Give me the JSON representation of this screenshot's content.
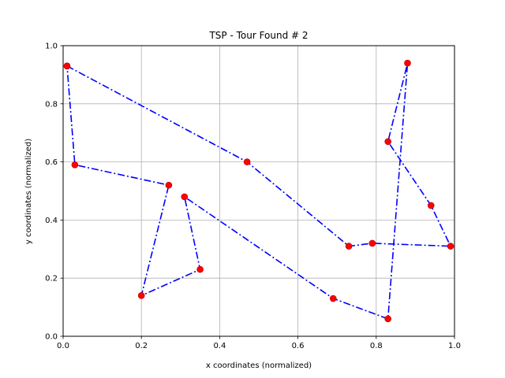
{
  "chart_data": {
    "type": "line",
    "title": "TSP - Tour Found # 2",
    "xlabel": "x coordinates (normalized)",
    "ylabel": "y coordinates (normalized)",
    "xlim": [
      0.0,
      1.0
    ],
    "ylim": [
      0.0,
      1.0
    ],
    "xticks": [
      "0.0",
      "0.2",
      "0.4",
      "0.6",
      "0.8",
      "1.0"
    ],
    "yticks": [
      "0.0",
      "0.2",
      "0.4",
      "0.6",
      "0.8",
      "1.0"
    ],
    "grid": true,
    "line_color": "#0000ff",
    "line_style": "dash-dot",
    "marker_color": "#ff0000",
    "marker_edge_color": "#b00000",
    "tour": [
      {
        "x": 0.01,
        "y": 0.93
      },
      {
        "x": 0.47,
        "y": 0.6
      },
      {
        "x": 0.73,
        "y": 0.31
      },
      {
        "x": 0.79,
        "y": 0.32
      },
      {
        "x": 0.99,
        "y": 0.31
      },
      {
        "x": 0.94,
        "y": 0.45
      },
      {
        "x": 0.83,
        "y": 0.67
      },
      {
        "x": 0.88,
        "y": 0.94
      },
      {
        "x": 0.83,
        "y": 0.06
      },
      {
        "x": 0.69,
        "y": 0.13
      },
      {
        "x": 0.31,
        "y": 0.48
      },
      {
        "x": 0.35,
        "y": 0.23
      },
      {
        "x": 0.2,
        "y": 0.14
      },
      {
        "x": 0.27,
        "y": 0.52
      },
      {
        "x": 0.03,
        "y": 0.59
      },
      {
        "x": 0.01,
        "y": 0.93
      }
    ]
  }
}
